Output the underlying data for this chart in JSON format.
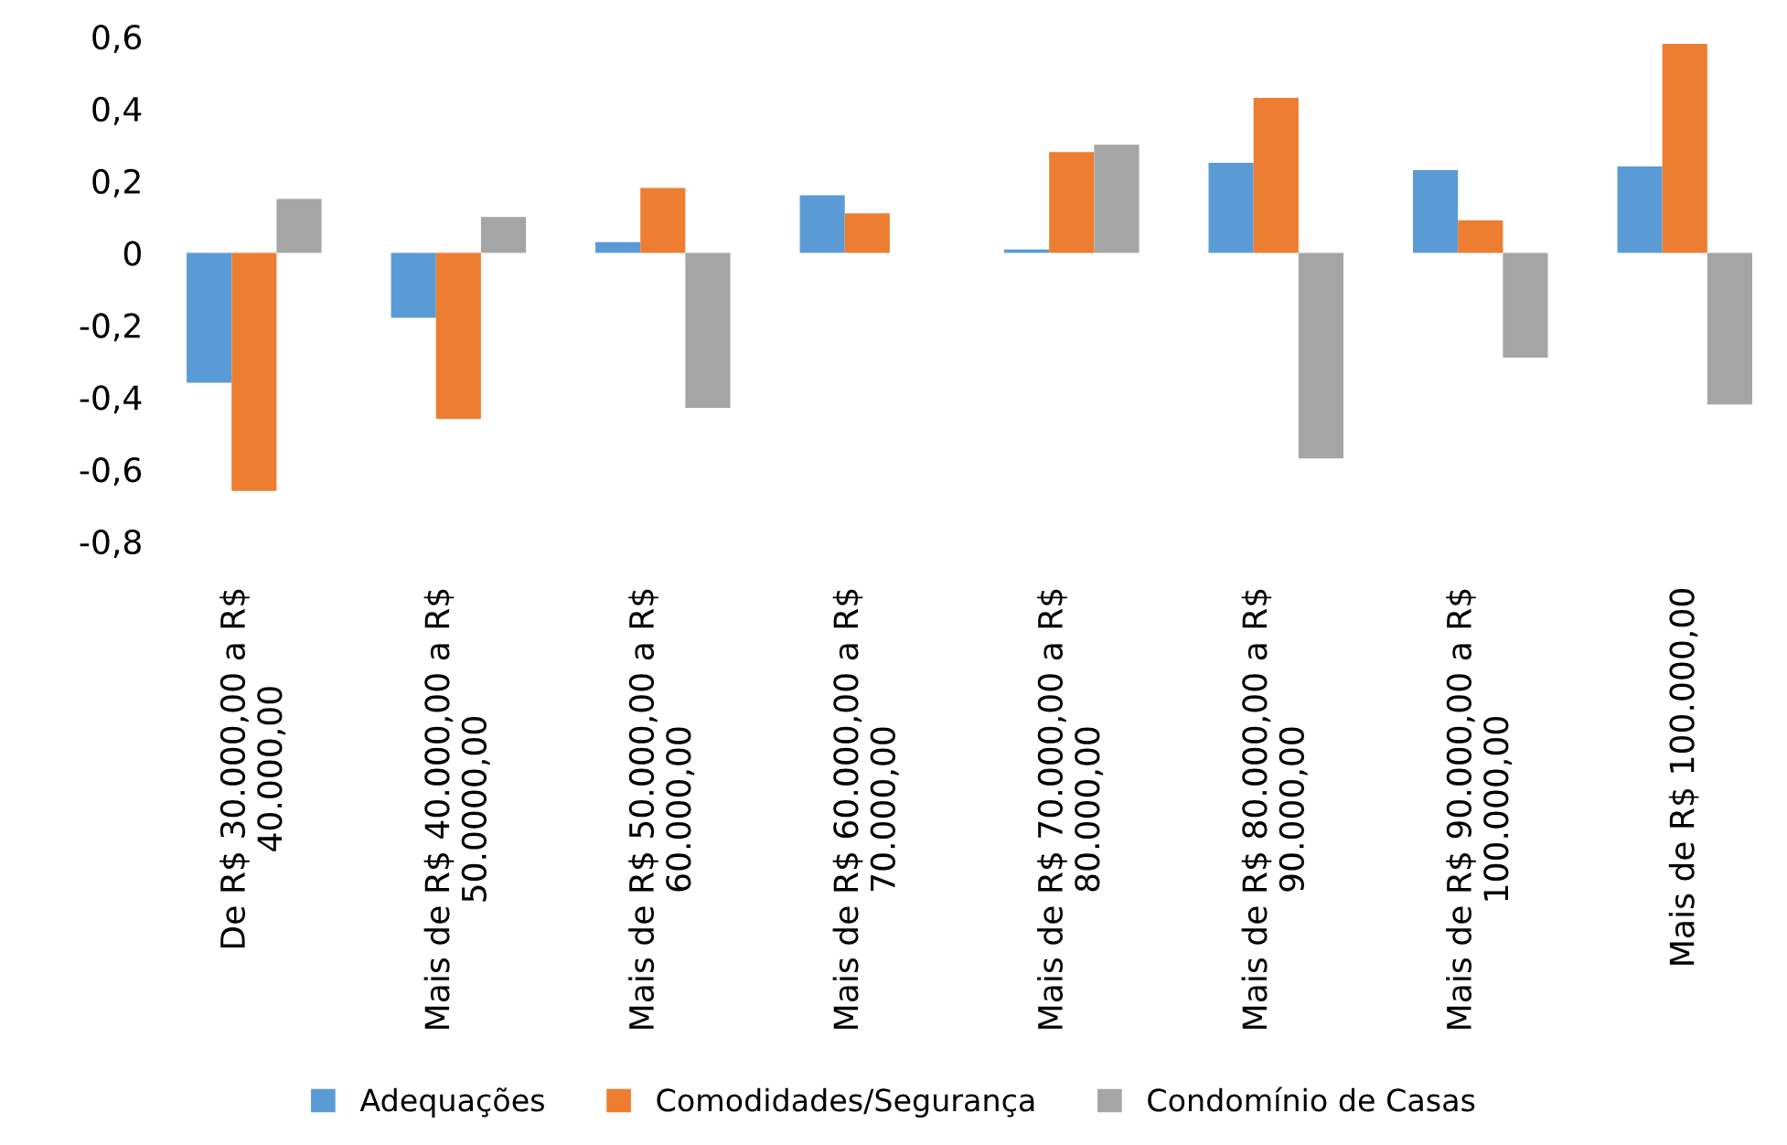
{
  "chart_data": {
    "type": "bar",
    "categories": [
      "De R$ 30.000,00 a R$\n40.000,00",
      "Mais de R$ 40.000,00 a R$\n50.0000,00",
      "Mais de R$ 50.000,00 a R$\n60.000,00",
      "Mais de R$ 60.000,00 a R$\n70.000,00",
      "Mais de R$ 70.000,00 a R$\n80.000,00",
      "Mais de R$ 80.000,00 a R$\n90.000,00",
      "Mais de R$ 90.000,00 a R$\n100.000,00",
      "Mais de R$ 100.000,00"
    ],
    "series": [
      {
        "name": "Adequações",
        "color": "#5b9bd5",
        "values": [
          -0.36,
          -0.18,
          0.03,
          0.16,
          0.01,
          0.25,
          0.23,
          0.24
        ]
      },
      {
        "name": "Comodidades/Segurança",
        "color": "#ed7d31",
        "values": [
          -0.66,
          -0.46,
          0.18,
          0.11,
          0.28,
          0.43,
          0.09,
          0.58
        ]
      },
      {
        "name": "Condomínio de Casas",
        "color": "#a5a5a5",
        "values": [
          0.15,
          0.1,
          -0.43,
          0.0,
          0.3,
          -0.57,
          -0.29,
          -0.42
        ]
      }
    ],
    "ylim": [
      -0.8,
      0.6
    ],
    "yticks": [
      {
        "value": -0.8,
        "label": "-0,8"
      },
      {
        "value": -0.6,
        "label": "-0,6"
      },
      {
        "value": -0.4,
        "label": "-0,4"
      },
      {
        "value": -0.2,
        "label": "-0,2"
      },
      0,
      {
        "value": 0.2,
        "label": "0,2"
      },
      {
        "value": 0.4,
        "label": "0,4"
      },
      {
        "value": 0.6,
        "label": "0,6"
      }
    ],
    "grid": false,
    "legend": "bottom"
  }
}
